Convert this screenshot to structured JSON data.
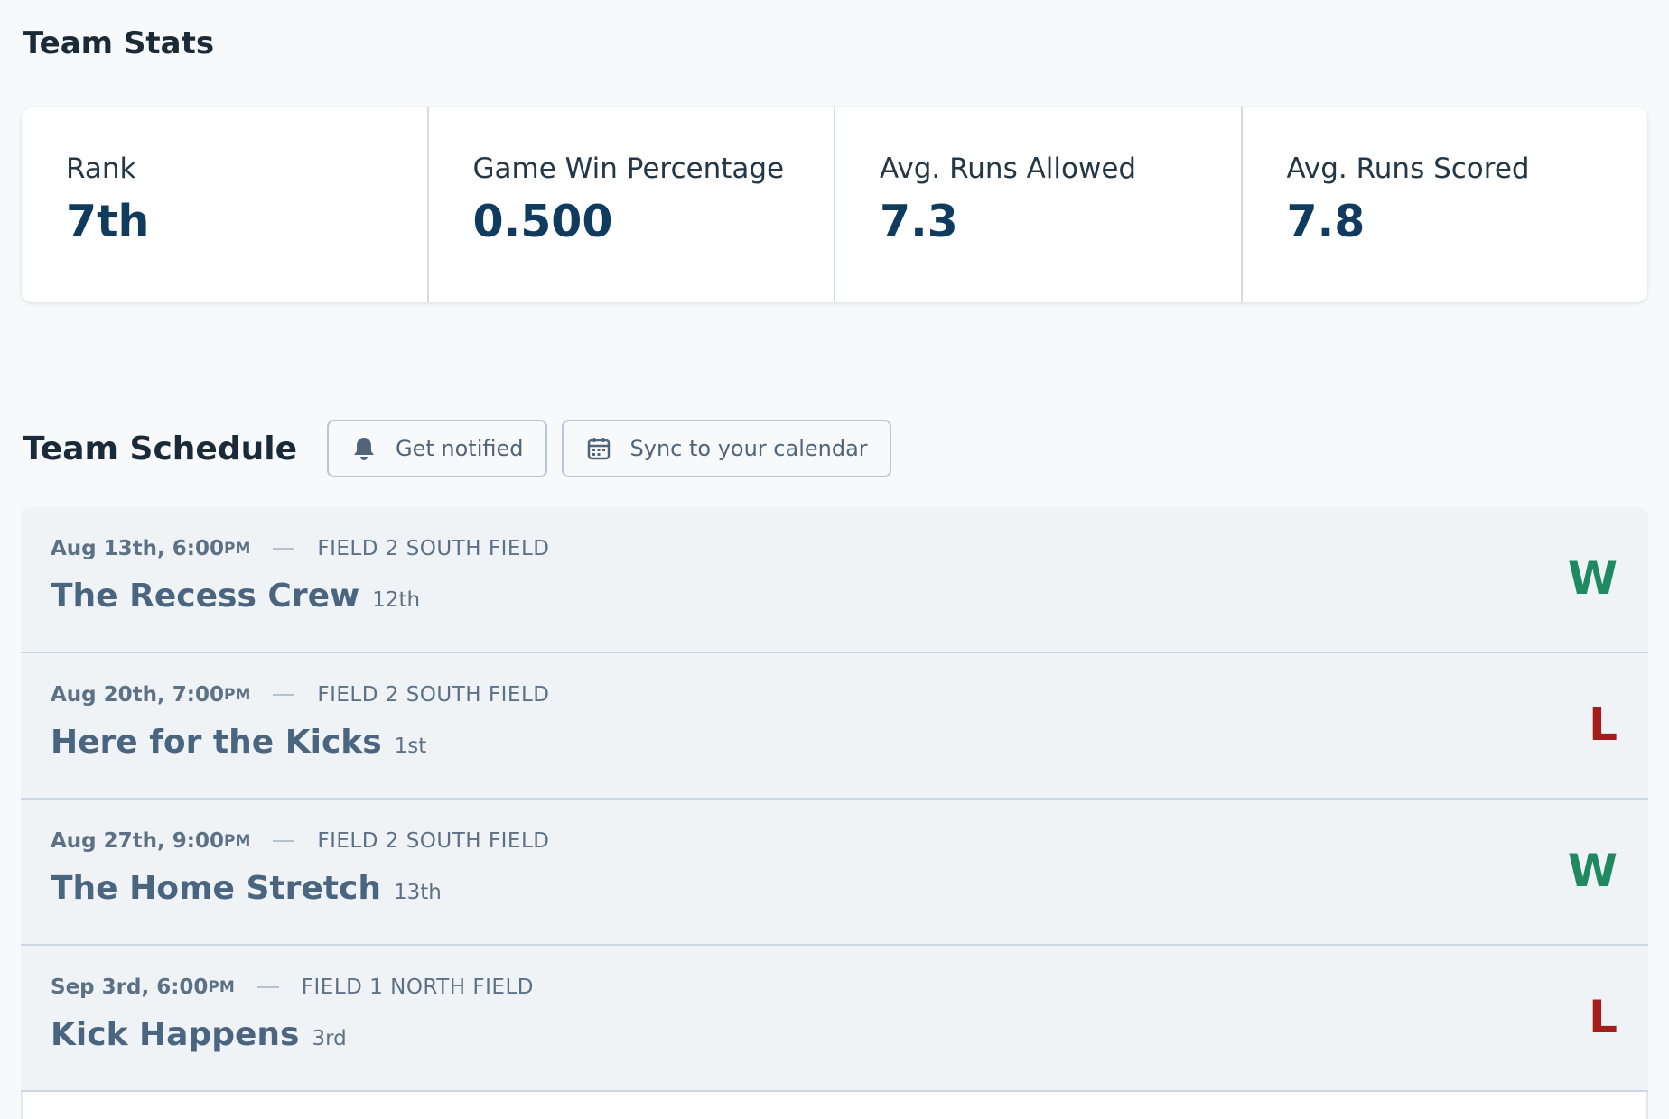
{
  "header": {
    "title": "Team Stats"
  },
  "stats": [
    {
      "label": "Rank",
      "value": "7th"
    },
    {
      "label": "Game Win Percentage",
      "value": "0.500"
    },
    {
      "label": "Avg. Runs Allowed",
      "value": "7.3"
    },
    {
      "label": "Avg. Runs Scored",
      "value": "7.8"
    }
  ],
  "schedule": {
    "title": "Team Schedule",
    "buttons": [
      "Get notified",
      "Sync to your calendar"
    ],
    "games": [
      {
        "date": "Aug 13th, 6:00",
        "meridiem": "PM",
        "field": "FIELD 2 SOUTH FIELD",
        "opponent": "The Recess Crew",
        "rank": "12th",
        "result": "W"
      },
      {
        "date": "Aug 20th, 7:00",
        "meridiem": "PM",
        "field": "FIELD 2 SOUTH FIELD",
        "opponent": "Here for the Kicks",
        "rank": "1st",
        "result": "L"
      },
      {
        "date": "Aug 27th, 9:00",
        "meridiem": "PM",
        "field": "FIELD 2 SOUTH FIELD",
        "opponent": "The Home Stretch",
        "rank": "13th",
        "result": "W"
      },
      {
        "date": "Sep 3rd, 6:00",
        "meridiem": "PM",
        "field": "FIELD 1 NORTH FIELD",
        "opponent": "Kick Happens",
        "rank": "3rd",
        "result": "L"
      }
    ]
  }
}
